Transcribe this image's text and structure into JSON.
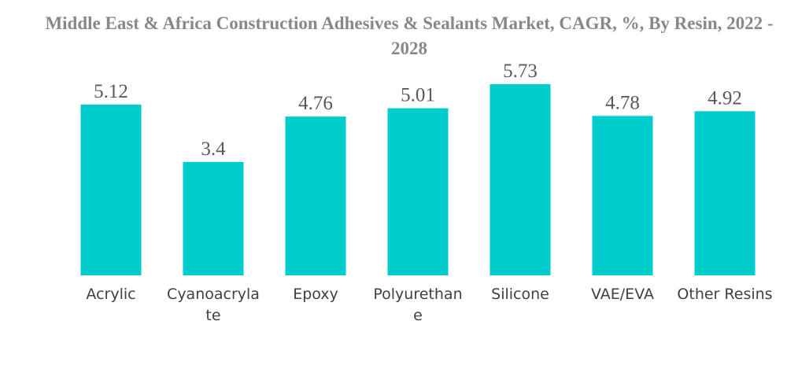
{
  "chart_data": {
    "type": "bar",
    "title": "Middle East & Africa Construction Adhesives & Sealants Market, CAGR, %, By Resin, 2022 - 2028",
    "categories": [
      "Acrylic",
      "Cyanoacrylate",
      "Epoxy",
      "Polyurethane",
      "Silicone",
      "VAE/EVA",
      "Other Resins"
    ],
    "category_display_lines": [
      [
        "Acrylic"
      ],
      [
        "Cyanoacryla",
        "te"
      ],
      [
        "Epoxy"
      ],
      [
        "Polyurethan",
        "e"
      ],
      [
        "Silicone"
      ],
      [
        "VAE/EVA"
      ],
      [
        "Other Resins"
      ]
    ],
    "values": [
      5.12,
      3.4,
      4.76,
      5.01,
      5.73,
      4.78,
      4.92
    ],
    "value_labels": [
      "5.12",
      "3.4",
      "4.76",
      "5.01",
      "5.73",
      "4.78",
      "4.92"
    ],
    "xlabel": "",
    "ylabel": "",
    "grid": false,
    "legend": "none",
    "bar_color": "#00CCCC"
  }
}
